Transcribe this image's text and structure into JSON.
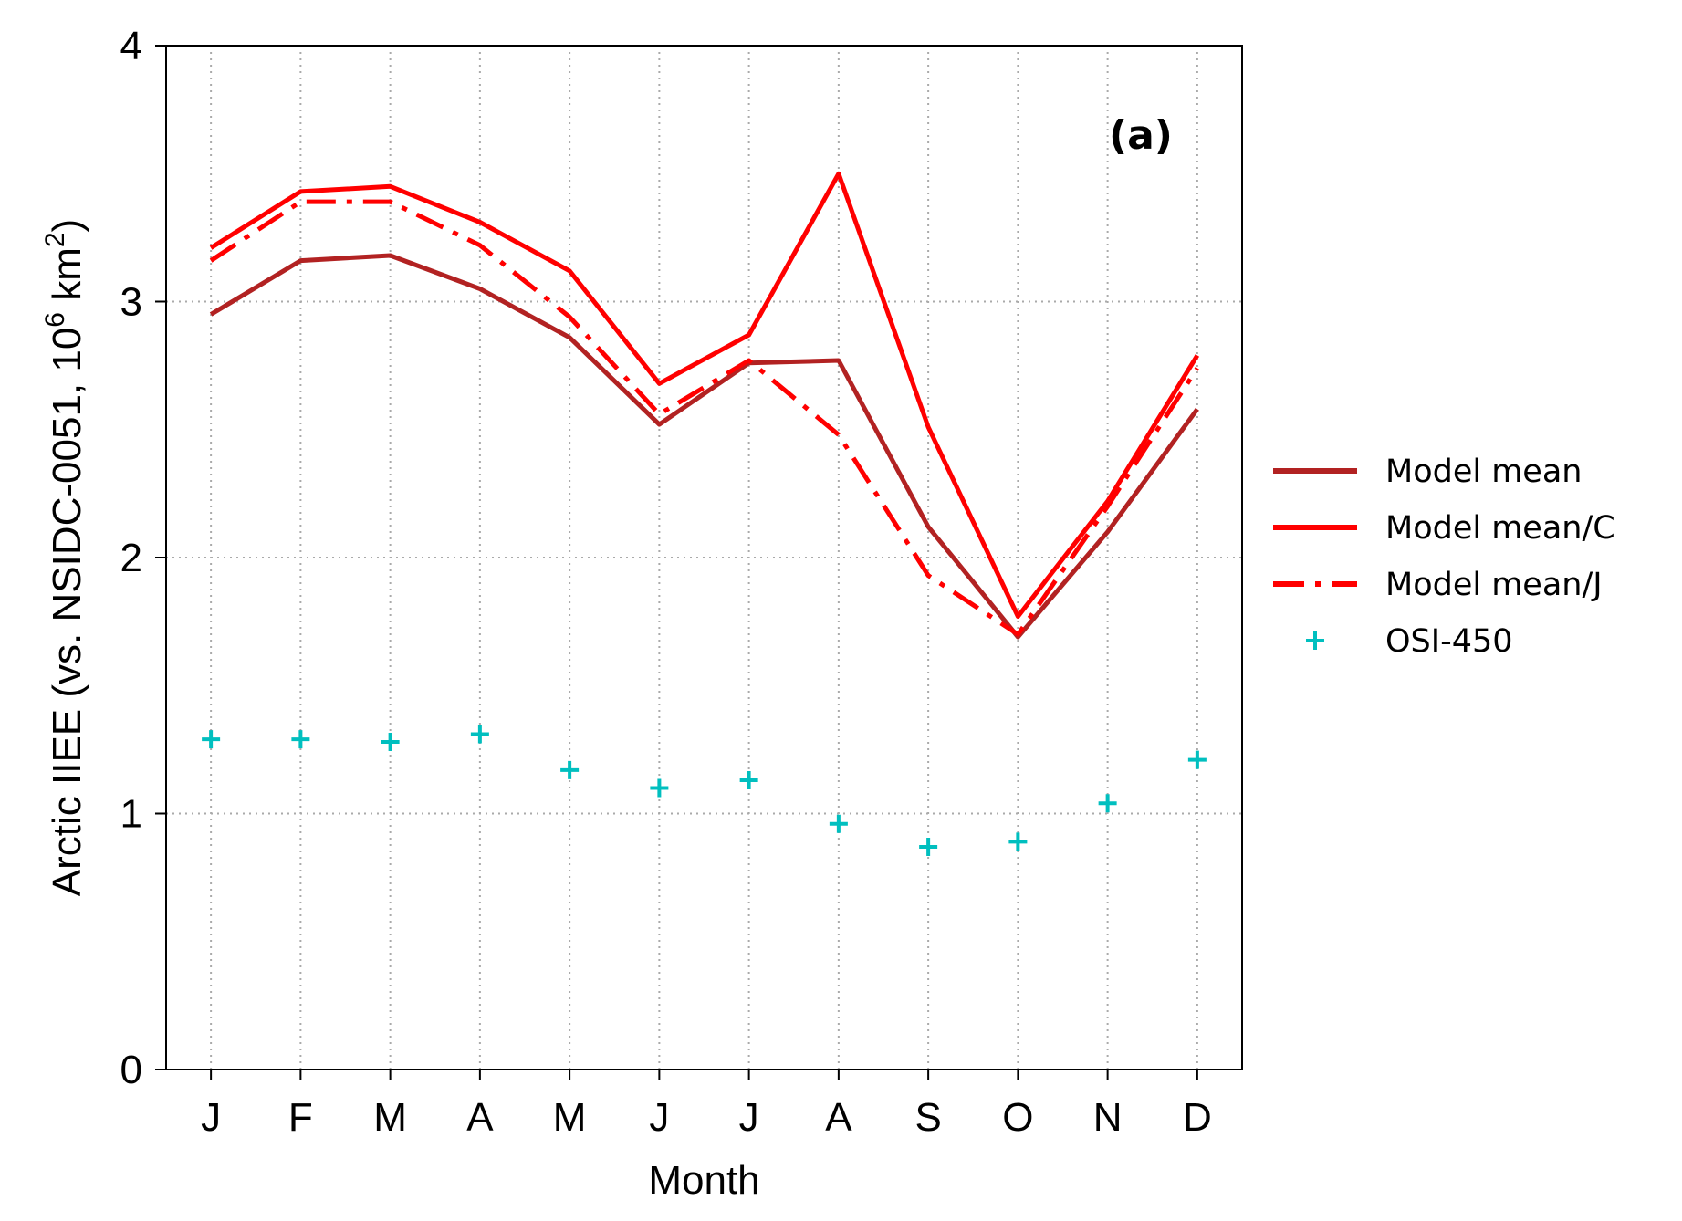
{
  "chart_data": {
    "type": "line",
    "panel_label": "(a)",
    "xlabel": "Month",
    "ylabel_parts": {
      "main": "Arctic IIEE (vs. NSIDC-0051, 10",
      "exp1": "6",
      "mid": " km",
      "exp2": "2",
      "end": ")"
    },
    "categories": [
      "J",
      "F",
      "M",
      "A",
      "M",
      "J",
      "J",
      "A",
      "S",
      "O",
      "N",
      "D"
    ],
    "ylim": [
      0,
      4
    ],
    "yticks": [
      "0",
      "1",
      "2",
      "3",
      "4"
    ],
    "grid": true,
    "legend_position": "right-outside",
    "series": [
      {
        "name": "Model mean",
        "style": "solid",
        "color": "#b22222",
        "values": [
          2.95,
          3.16,
          3.18,
          3.05,
          2.86,
          2.52,
          2.76,
          2.77,
          2.12,
          1.69,
          2.1,
          2.58
        ]
      },
      {
        "name": "Model mean/C",
        "style": "solid",
        "color": "#ff0000",
        "values": [
          3.21,
          3.43,
          3.45,
          3.31,
          3.12,
          2.68,
          2.87,
          3.5,
          2.51,
          1.77,
          2.22,
          2.79
        ]
      },
      {
        "name": "Model mean/J",
        "style": "dashdot",
        "color": "#ff0000",
        "values": [
          3.16,
          3.39,
          3.39,
          3.22,
          2.94,
          2.56,
          2.77,
          2.48,
          1.93,
          1.7,
          2.2,
          2.74
        ]
      },
      {
        "name": "OSI-450",
        "style": "marker-plus",
        "color": "#00bfbf",
        "values": [
          1.29,
          1.29,
          1.28,
          1.31,
          1.17,
          1.1,
          1.13,
          0.96,
          0.87,
          0.89,
          1.04,
          1.21
        ]
      }
    ]
  }
}
